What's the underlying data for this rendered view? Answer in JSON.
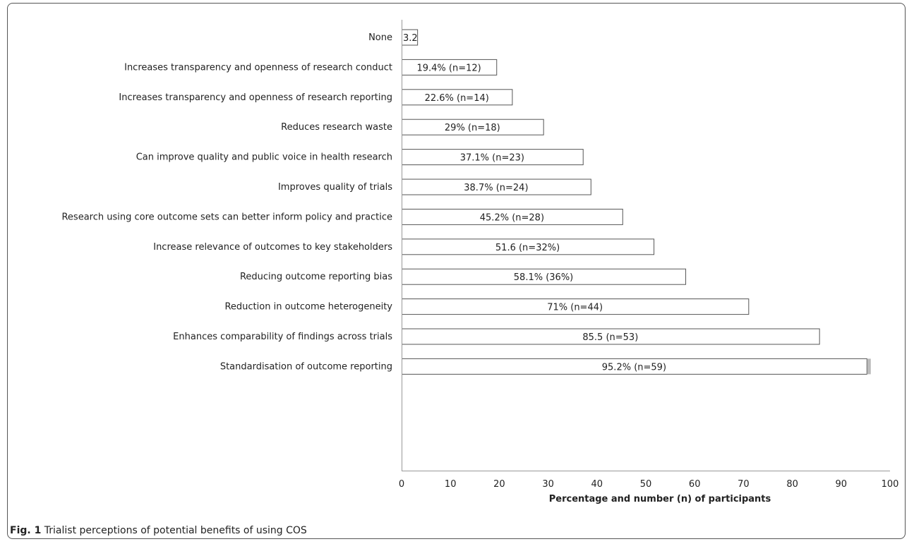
{
  "caption": {
    "label": "Fig. 1",
    "text": "Trialist perceptions of potential benefits of using COS"
  },
  "chart_data": {
    "type": "bar",
    "orientation": "horizontal",
    "xlabel": "Percentage and number (n) of participants",
    "ylabel": "",
    "xlim": [
      0,
      100
    ],
    "xticks": [
      0,
      10,
      20,
      30,
      40,
      50,
      60,
      70,
      80,
      90,
      100
    ],
    "grid": false,
    "categories": [
      "None",
      "Increases transparency and openness of research conduct",
      "Increases transparency and openness of research reporting",
      "Reduces research waste",
      "Can improve quality and public voice in health research",
      "Improves quality of trials",
      "Research using core outcome sets can better inform policy and practice",
      "Increase relevance of outcomes to key stakeholders",
      "Reducing outcome reporting bias",
      "Reduction in outcome heterogeneity",
      "Enhances comparability of findings across trials",
      "Standardisation of outcome reporting"
    ],
    "values": [
      3.2,
      19.4,
      22.6,
      29,
      37.1,
      38.7,
      45.2,
      51.6,
      58.1,
      71,
      85.5,
      95.2
    ],
    "data_labels": [
      "3.2",
      "19.4% (n=12)",
      "22.6% (n=14)",
      "29% (n=18)",
      "37.1% (n=23)",
      "38.7% (n=24)",
      "45.2% (n=28)",
      "51.6 (n=32%)",
      "58.1% (36%)",
      "71% (n=44)",
      "85.5 (n=53)",
      "95.2% (n=59)"
    ],
    "colors": {
      "bar_fill": "#ffffff",
      "bar_stroke": "#555555",
      "axis": "#999999",
      "text": "#222222",
      "marker": "#bbbbbb"
    }
  }
}
